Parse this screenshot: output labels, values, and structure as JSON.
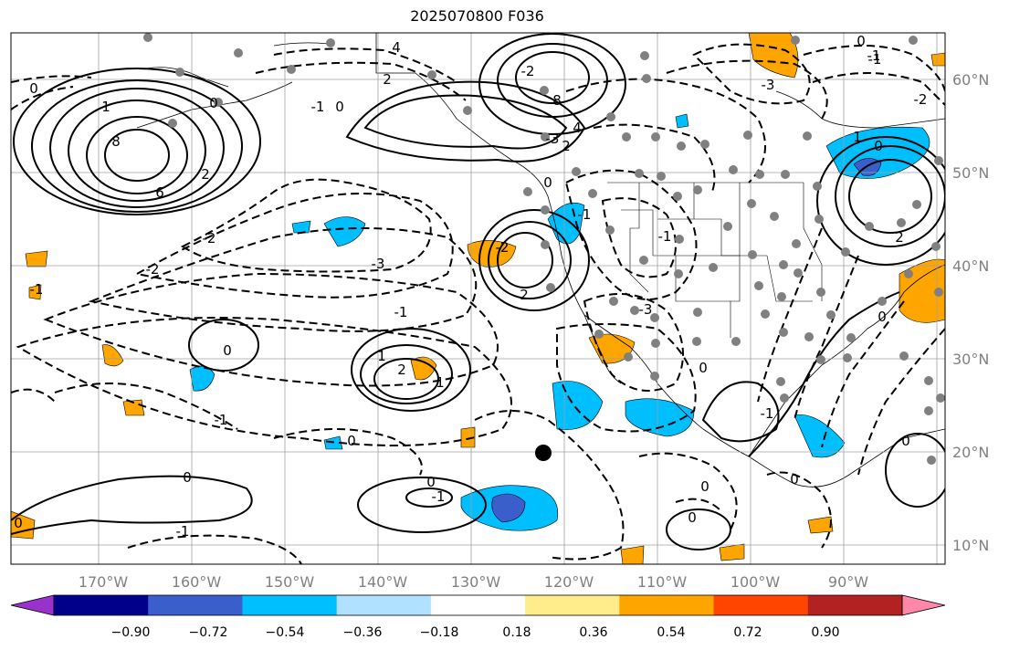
{
  "title": "2025070800 F036",
  "lat_labels": [
    "60°N",
    "50°N",
    "40°N",
    "30°N",
    "20°N",
    "10°N"
  ],
  "lon_labels": [
    "170°W",
    "160°W",
    "150°W",
    "140°W",
    "130°W",
    "120°W",
    "110°W",
    "100°W",
    "90°W"
  ],
  "colorbar": {
    "colors": [
      "#9932cc",
      "#00008b",
      "#3a5fcd",
      "#00bfff",
      "#b0e2ff",
      "#ffffff",
      "#ffec8b",
      "#ffa500",
      "#ff4500",
      "#b22222",
      "#ff88a8"
    ],
    "tick_labels": [
      "−0.90",
      "−0.72",
      "−0.54",
      "−0.36",
      "−0.18",
      "0.18",
      "0.36",
      "0.54",
      "0.72",
      "0.90"
    ]
  },
  "contour_labels": [
    "4",
    "2",
    "0",
    "-1",
    "8",
    "6",
    "2",
    "-2",
    "-3",
    "-2",
    "-1",
    "0",
    "1",
    "2",
    "4",
    "8",
    "-3",
    "-2",
    "-1",
    "0",
    "-1",
    "0",
    "-3",
    "-2",
    "2",
    "-3",
    "0",
    "-1",
    "1",
    "0",
    "2",
    "1",
    "-1",
    "0",
    "-1",
    "1",
    "0",
    "0",
    "-1",
    "0",
    "-1",
    "0",
    "0",
    "0",
    "-1",
    "2",
    "0",
    "0",
    "0",
    "-2",
    "-1",
    "0"
  ],
  "colors_note": {
    "positive_fill": "#ffa500",
    "negative_fill": "#00bfff",
    "deep_negative_fill": "#3a5fcd",
    "station_dot": "#808080"
  }
}
